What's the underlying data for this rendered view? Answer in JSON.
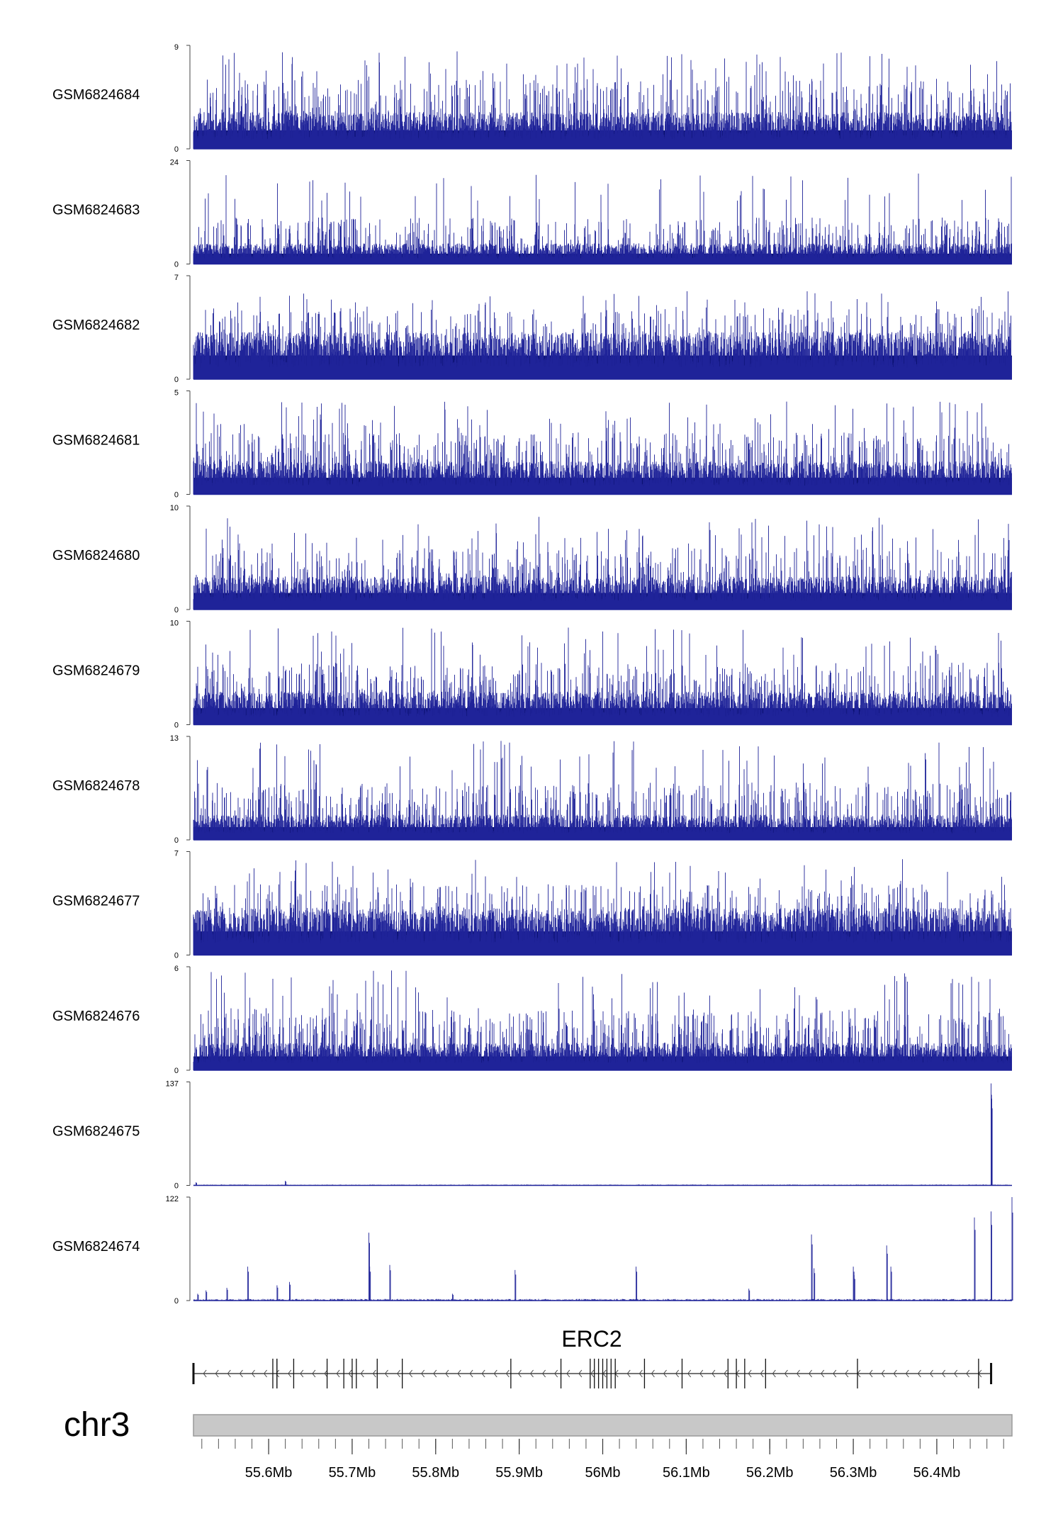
{
  "chart_data": {
    "type": "bar",
    "chromosome": "chr3",
    "x_range_mb": [
      55.51,
      56.49
    ],
    "tracks": [
      {
        "name": "GSM6824684",
        "ymax": "9",
        "ymin": "0",
        "mode": "noise",
        "base": 2,
        "typ": 5,
        "peak": 8.5,
        "seed": 11
      },
      {
        "name": "GSM6824683",
        "ymax": "24",
        "ymin": "0",
        "mode": "noise",
        "base": 3,
        "typ": 9,
        "peak": 21,
        "seed": 23
      },
      {
        "name": "GSM6824682",
        "ymax": "7",
        "ymin": "0",
        "mode": "noise",
        "base": 2,
        "typ": 4,
        "peak": 6,
        "seed": 37
      },
      {
        "name": "GSM6824681",
        "ymax": "5",
        "ymin": "0",
        "mode": "noise",
        "base": 1,
        "typ": 2.5,
        "peak": 4.5,
        "seed": 41
      },
      {
        "name": "GSM6824680",
        "ymax": "10",
        "ymin": "0",
        "mode": "noise",
        "base": 2,
        "typ": 5,
        "peak": 9,
        "seed": 53
      },
      {
        "name": "GSM6824679",
        "ymax": "10",
        "ymin": "0",
        "mode": "noise",
        "base": 2,
        "typ": 5,
        "peak": 9.5,
        "seed": 67
      },
      {
        "name": "GSM6824678",
        "ymax": "13",
        "ymin": "0",
        "mode": "noise",
        "base": 2,
        "typ": 6,
        "peak": 12.5,
        "seed": 71
      },
      {
        "name": "GSM6824677",
        "ymax": "7",
        "ymin": "0",
        "mode": "noise",
        "base": 2,
        "typ": 4,
        "peak": 6.5,
        "seed": 83
      },
      {
        "name": "GSM6824676",
        "ymax": "6",
        "ymin": "0",
        "mode": "noise",
        "base": 1,
        "typ": 3,
        "peak": 5.8,
        "seed": 97
      },
      {
        "name": "GSM6824675",
        "ymax": "137",
        "ymin": "0",
        "mode": "sparse",
        "max": 137,
        "bg": 1.2,
        "peaks": [
          [
            55.513,
            4
          ],
          [
            55.62,
            6
          ],
          [
            56.465,
            135
          ],
          [
            56.4655,
            120
          ]
        ]
      },
      {
        "name": "GSM6824674",
        "ymax": "122",
        "ymin": "0",
        "mode": "sparse",
        "max": 122,
        "bg": 2,
        "peaks": [
          [
            55.515,
            8
          ],
          [
            55.525,
            12
          ],
          [
            55.55,
            15
          ],
          [
            55.575,
            40
          ],
          [
            55.61,
            18
          ],
          [
            55.625,
            22
          ],
          [
            55.72,
            80
          ],
          [
            55.721,
            40
          ],
          [
            55.745,
            42
          ],
          [
            55.82,
            8
          ],
          [
            55.895,
            36
          ],
          [
            56.04,
            40
          ],
          [
            56.175,
            14
          ],
          [
            56.25,
            78
          ],
          [
            56.253,
            38
          ],
          [
            56.3,
            40
          ],
          [
            56.301,
            30
          ],
          [
            56.34,
            65
          ],
          [
            56.345,
            40
          ],
          [
            56.445,
            98
          ],
          [
            56.465,
            105
          ],
          [
            56.49,
            122
          ]
        ]
      }
    ],
    "gene": {
      "name": "ERC2",
      "strand": "-",
      "start_mb": 55.51,
      "end_mb": 56.465,
      "exons_mb": [
        55.51,
        55.605,
        55.61,
        55.61,
        55.63,
        55.67,
        55.69,
        55.7,
        55.705,
        55.73,
        55.76,
        55.89,
        55.95,
        55.985,
        55.99,
        55.995,
        56.0,
        56.005,
        56.01,
        56.015,
        56.05,
        56.095,
        56.15,
        56.16,
        56.17,
        56.195,
        56.305,
        56.45,
        56.465
      ]
    },
    "x_ticks": [
      "55.6Mb",
      "55.7Mb",
      "55.8Mb",
      "55.9Mb",
      "56Mb",
      "56.1Mb",
      "56.2Mb",
      "56.3Mb",
      "56.4Mb"
    ],
    "x_tick_values": [
      55.6,
      55.7,
      55.8,
      55.9,
      56.0,
      56.1,
      56.2,
      56.3,
      56.4
    ],
    "minor_tick_step_mb": 0.02,
    "colors": {
      "signal": "#1f2399",
      "signal_dark": "#0a1170",
      "ideogram": "#c8c8c8",
      "ideogram_border": "#9a9a9a",
      "axis": "#555555"
    }
  }
}
